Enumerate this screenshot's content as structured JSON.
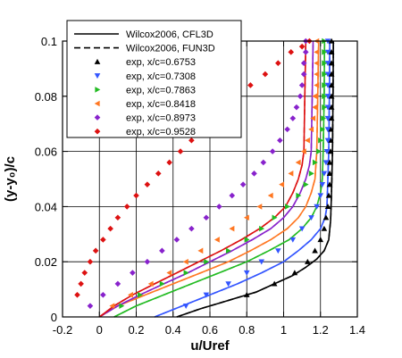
{
  "chart_data": {
    "type": "line",
    "xlabel": "u/Uref",
    "ylabel": "(y-y₀)/c",
    "xlim": [
      -0.2,
      1.4
    ],
    "ylim": [
      0,
      0.1
    ],
    "xticks": [
      "-0.2",
      "0",
      "0.2",
      "0.4",
      "0.6",
      "0.8",
      "1",
      "1.2",
      "1.4"
    ],
    "yticks": [
      "0",
      "0.02",
      "0.04",
      "0.06",
      "0.08",
      "0.1"
    ],
    "grid": true,
    "legend_position": "top-left",
    "legend": [
      {
        "label": "Wilcox2006, CFL3D",
        "style": "solid-line"
      },
      {
        "label": "Wilcox2006, FUN3D",
        "style": "dashed-line"
      },
      {
        "label": "exp, x/c=0.6753",
        "style": "triangle-up",
        "color": "#000000"
      },
      {
        "label": "exp, x/c=0.7308",
        "style": "triangle-down",
        "color": "#3355ff"
      },
      {
        "label": "exp, x/c=0.7863",
        "style": "triangle-right",
        "color": "#22bb22"
      },
      {
        "label": "exp, x/c=0.8418",
        "style": "triangle-left",
        "color": "#ff7722"
      },
      {
        "label": "exp, x/c=0.8973",
        "style": "diamond",
        "color": "#8822cc"
      },
      {
        "label": "exp, x/c=0.9528",
        "style": "diamond",
        "color": "#dd1111"
      }
    ],
    "series": [
      {
        "name": "exp, x/c=0.6753",
        "marker": "triangle-up",
        "color": "#000000",
        "line": {
          "x": [
            0.42,
            0.55,
            0.65,
            0.75,
            0.85,
            0.95,
            1.05,
            1.12,
            1.18,
            1.22,
            1.245,
            1.255,
            1.26,
            1.265,
            1.268,
            1.27
          ],
          "y": [
            0,
            0.003,
            0.005,
            0.007,
            0.009,
            0.012,
            0.015,
            0.018,
            0.021,
            0.024,
            0.028,
            0.035,
            0.045,
            0.06,
            0.08,
            0.1
          ]
        },
        "points": {
          "x": [
            0.8,
            0.95,
            1.06,
            1.13,
            1.17,
            1.2,
            1.22,
            1.23,
            1.24,
            1.245,
            1.25,
            1.25,
            1.25,
            1.255,
            1.255,
            1.255,
            1.26,
            1.26,
            1.26,
            1.26,
            1.26,
            1.26,
            1.26,
            1.26
          ],
          "y": [
            0.008,
            0.012,
            0.016,
            0.02,
            0.024,
            0.028,
            0.032,
            0.036,
            0.04,
            0.044,
            0.048,
            0.052,
            0.056,
            0.06,
            0.064,
            0.068,
            0.072,
            0.076,
            0.08,
            0.084,
            0.088,
            0.092,
            0.096,
            0.1
          ]
        }
      },
      {
        "name": "exp, x/c=0.7308",
        "marker": "triangle-down",
        "color": "#3355ff",
        "line": {
          "x": [
            0.3,
            0.45,
            0.6,
            0.75,
            0.88,
            1.0,
            1.08,
            1.15,
            1.2,
            1.225,
            1.235,
            1.24,
            1.245,
            1.248,
            1.25
          ],
          "y": [
            0,
            0.004,
            0.008,
            0.012,
            0.016,
            0.02,
            0.024,
            0.028,
            0.032,
            0.036,
            0.04,
            0.05,
            0.06,
            0.08,
            0.1
          ]
        },
        "points": {
          "x": [
            0.47,
            0.58,
            0.7,
            0.8,
            0.88,
            0.97,
            1.05,
            1.1,
            1.15,
            1.18,
            1.2,
            1.21,
            1.22,
            1.23,
            1.235,
            1.24,
            1.24,
            1.24,
            1.24,
            1.24,
            1.24,
            1.24,
            1.24,
            1.24,
            1.24
          ],
          "y": [
            0.004,
            0.008,
            0.012,
            0.016,
            0.02,
            0.024,
            0.028,
            0.032,
            0.036,
            0.04,
            0.044,
            0.048,
            0.052,
            0.056,
            0.06,
            0.064,
            0.068,
            0.072,
            0.076,
            0.08,
            0.084,
            0.088,
            0.092,
            0.096,
            0.1
          ]
        }
      },
      {
        "name": "exp, x/c=0.7863",
        "marker": "triangle-right",
        "color": "#22bb22",
        "line": {
          "x": [
            0.08,
            0.2,
            0.35,
            0.5,
            0.65,
            0.8,
            0.92,
            1.03,
            1.1,
            1.15,
            1.18,
            1.2,
            1.21,
            1.215,
            1.22,
            1.222
          ],
          "y": [
            0,
            0.004,
            0.008,
            0.012,
            0.016,
            0.02,
            0.024,
            0.028,
            0.032,
            0.036,
            0.04,
            0.045,
            0.05,
            0.06,
            0.08,
            0.1
          ]
        },
        "points": {
          "x": [
            0.12,
            0.22,
            0.34,
            0.47,
            0.58,
            0.7,
            0.8,
            0.88,
            0.95,
            1.02,
            1.08,
            1.12,
            1.15,
            1.17,
            1.19,
            1.2,
            1.21,
            1.215,
            1.22,
            1.22,
            1.22,
            1.22,
            1.22,
            1.22,
            1.22
          ],
          "y": [
            0.004,
            0.008,
            0.012,
            0.016,
            0.02,
            0.024,
            0.028,
            0.032,
            0.036,
            0.04,
            0.044,
            0.048,
            0.052,
            0.056,
            0.06,
            0.064,
            0.068,
            0.072,
            0.076,
            0.08,
            0.084,
            0.088,
            0.092,
            0.096,
            0.1
          ]
        }
      },
      {
        "name": "exp, x/c=0.8418",
        "marker": "triangle-left",
        "color": "#ff7722",
        "line": {
          "x": [
            0.0,
            0.1,
            0.25,
            0.4,
            0.55,
            0.7,
            0.82,
            0.93,
            1.02,
            1.08,
            1.12,
            1.15,
            1.17,
            1.18,
            1.185,
            1.19
          ],
          "y": [
            0,
            0.004,
            0.008,
            0.012,
            0.016,
            0.02,
            0.024,
            0.028,
            0.032,
            0.036,
            0.04,
            0.045,
            0.05,
            0.06,
            0.08,
            0.1
          ]
        },
        "points": {
          "x": [
            0.07,
            0.17,
            0.28,
            0.38,
            0.47,
            0.55,
            0.64,
            0.72,
            0.8,
            0.87,
            0.93,
            0.99,
            1.04,
            1.08,
            1.11,
            1.13,
            1.15,
            1.16,
            1.17,
            1.17,
            1.18,
            1.18,
            1.18,
            1.18,
            1.18
          ],
          "y": [
            0.004,
            0.008,
            0.012,
            0.016,
            0.02,
            0.024,
            0.028,
            0.032,
            0.036,
            0.04,
            0.044,
            0.048,
            0.052,
            0.056,
            0.06,
            0.064,
            0.068,
            0.072,
            0.076,
            0.08,
            0.084,
            0.088,
            0.092,
            0.096,
            0.1
          ]
        }
      },
      {
        "name": "exp, x/c=0.8973",
        "marker": "diamond",
        "color": "#8822cc",
        "line": {
          "x": [
            0.0,
            0.1,
            0.22,
            0.35,
            0.48,
            0.6,
            0.72,
            0.83,
            0.93,
            1.0,
            1.05,
            1.09,
            1.12,
            1.14,
            1.15,
            1.155,
            1.16
          ],
          "y": [
            0,
            0.004,
            0.008,
            0.012,
            0.016,
            0.02,
            0.024,
            0.028,
            0.032,
            0.036,
            0.04,
            0.045,
            0.05,
            0.055,
            0.06,
            0.08,
            0.1
          ]
        },
        "points": {
          "x": [
            -0.05,
            0.02,
            0.1,
            0.18,
            0.26,
            0.34,
            0.42,
            0.5,
            0.58,
            0.65,
            0.72,
            0.78,
            0.84,
            0.89,
            0.94,
            0.98,
            1.02,
            1.05,
            1.07,
            1.09,
            1.1,
            1.11,
            1.11,
            1.12,
            1.12
          ],
          "y": [
            0.004,
            0.008,
            0.012,
            0.016,
            0.02,
            0.024,
            0.028,
            0.032,
            0.036,
            0.04,
            0.044,
            0.048,
            0.052,
            0.056,
            0.06,
            0.064,
            0.068,
            0.072,
            0.076,
            0.08,
            0.084,
            0.088,
            0.092,
            0.096,
            0.1
          ]
        }
      },
      {
        "name": "exp, x/c=0.9528",
        "marker": "diamond",
        "color": "#dd1111",
        "line": {
          "x": [
            0.0,
            0.08,
            0.18,
            0.3,
            0.42,
            0.54,
            0.66,
            0.77,
            0.87,
            0.95,
            1.01,
            1.05,
            1.08,
            1.1,
            1.11,
            1.115,
            1.12
          ],
          "y": [
            0,
            0.004,
            0.008,
            0.012,
            0.016,
            0.02,
            0.024,
            0.028,
            0.032,
            0.036,
            0.04,
            0.045,
            0.05,
            0.055,
            0.06,
            0.08,
            0.1
          ]
        },
        "points": {
          "x": [
            -0.12,
            -0.1,
            -0.08,
            -0.05,
            -0.02,
            0.02,
            0.06,
            0.1,
            0.15,
            0.2,
            0.26,
            0.32,
            0.38,
            0.44,
            0.5,
            0.56,
            0.62,
            0.68,
            0.75,
            0.82,
            0.9,
            0.97,
            1.04,
            1.1,
            1.14
          ],
          "y": [
            0.008,
            0.012,
            0.016,
            0.02,
            0.024,
            0.028,
            0.032,
            0.036,
            0.04,
            0.044,
            0.048,
            0.052,
            0.056,
            0.06,
            0.064,
            0.068,
            0.072,
            0.076,
            0.08,
            0.084,
            0.088,
            0.092,
            0.096,
            0.098,
            0.1
          ]
        }
      }
    ]
  }
}
